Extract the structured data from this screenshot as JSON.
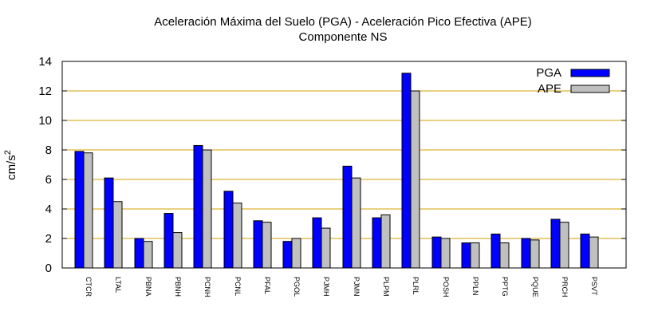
{
  "chart_data": {
    "type": "bar",
    "title": "Aceleración Máxima del Suelo (PGA) -  Aceleración Pico Efectiva (APE)",
    "subtitle": "Componente NS",
    "ylabel": "cm/s",
    "ylabel_sup": "2",
    "xlabel": "",
    "ylim": [
      0,
      14
    ],
    "yticks": [
      0,
      2,
      4,
      6,
      8,
      10,
      12,
      14
    ],
    "grid": "horizontal",
    "legend_position": "top-right",
    "categories": [
      "CTCR",
      "LTAL",
      "PBNA",
      "PBNH",
      "PCNH",
      "PCNL",
      "PFAL",
      "PGOL",
      "PJMH",
      "PJMN",
      "PLPM",
      "PLRL",
      "POSH",
      "PPLN",
      "PPTG",
      "PQUE",
      "PRCH",
      "PSVT"
    ],
    "series": [
      {
        "name": "PGA",
        "color": "#0000ff",
        "values": [
          7.9,
          6.1,
          2.0,
          3.7,
          8.3,
          5.2,
          3.2,
          1.8,
          3.4,
          6.9,
          3.4,
          13.2,
          2.1,
          1.7,
          2.3,
          2.0,
          3.3,
          2.3
        ]
      },
      {
        "name": "APE",
        "color": "#c0c0c0",
        "values": [
          7.8,
          4.5,
          1.8,
          2.4,
          8.0,
          4.4,
          3.1,
          2.0,
          2.7,
          6.1,
          3.6,
          12.0,
          2.0,
          1.7,
          1.7,
          1.9,
          3.1,
          2.1
        ]
      }
    ],
    "grid_color": "#d4a000"
  }
}
